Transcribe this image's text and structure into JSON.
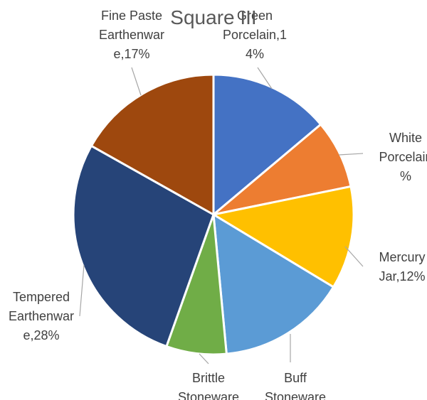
{
  "chart_data": {
    "type": "pie",
    "title": "Square III",
    "start_angle_deg": 0,
    "direction": "clockwise",
    "slices": [
      {
        "label": "Green Porcelain",
        "value": 14,
        "color": "#4472C4",
        "text_lines": [
          "Green",
          "Porcelain,1",
          "4%"
        ]
      },
      {
        "label": "White Porcelain",
        "value": 8,
        "color": "#ED7D31",
        "text_lines": [
          "White",
          "Porcelain",
          "%"
        ]
      },
      {
        "label": "Mercury Jar",
        "value": 12,
        "color": "#FFC000",
        "text_lines": [
          "Mercury",
          "Jar,12%"
        ]
      },
      {
        "label": "Buff Stoneware",
        "value": 15,
        "color": "#5B9BD5",
        "text_lines": [
          "Buff",
          "Stoneware"
        ]
      },
      {
        "label": "Brittle Stoneware",
        "value": 7,
        "color": "#70AD47",
        "text_lines": [
          "Brittle",
          "Stoneware"
        ]
      },
      {
        "label": "Tempered Earthenware",
        "value": 28,
        "color": "#264478",
        "text_lines": [
          "Tempered",
          "Earthenwar",
          "e,28%"
        ]
      },
      {
        "label": "Fine Paste Earthenware",
        "value": 17,
        "color": "#9E480E",
        "text_lines": [
          "Fine Paste",
          "Earthenwar",
          "e,17%"
        ]
      }
    ]
  }
}
